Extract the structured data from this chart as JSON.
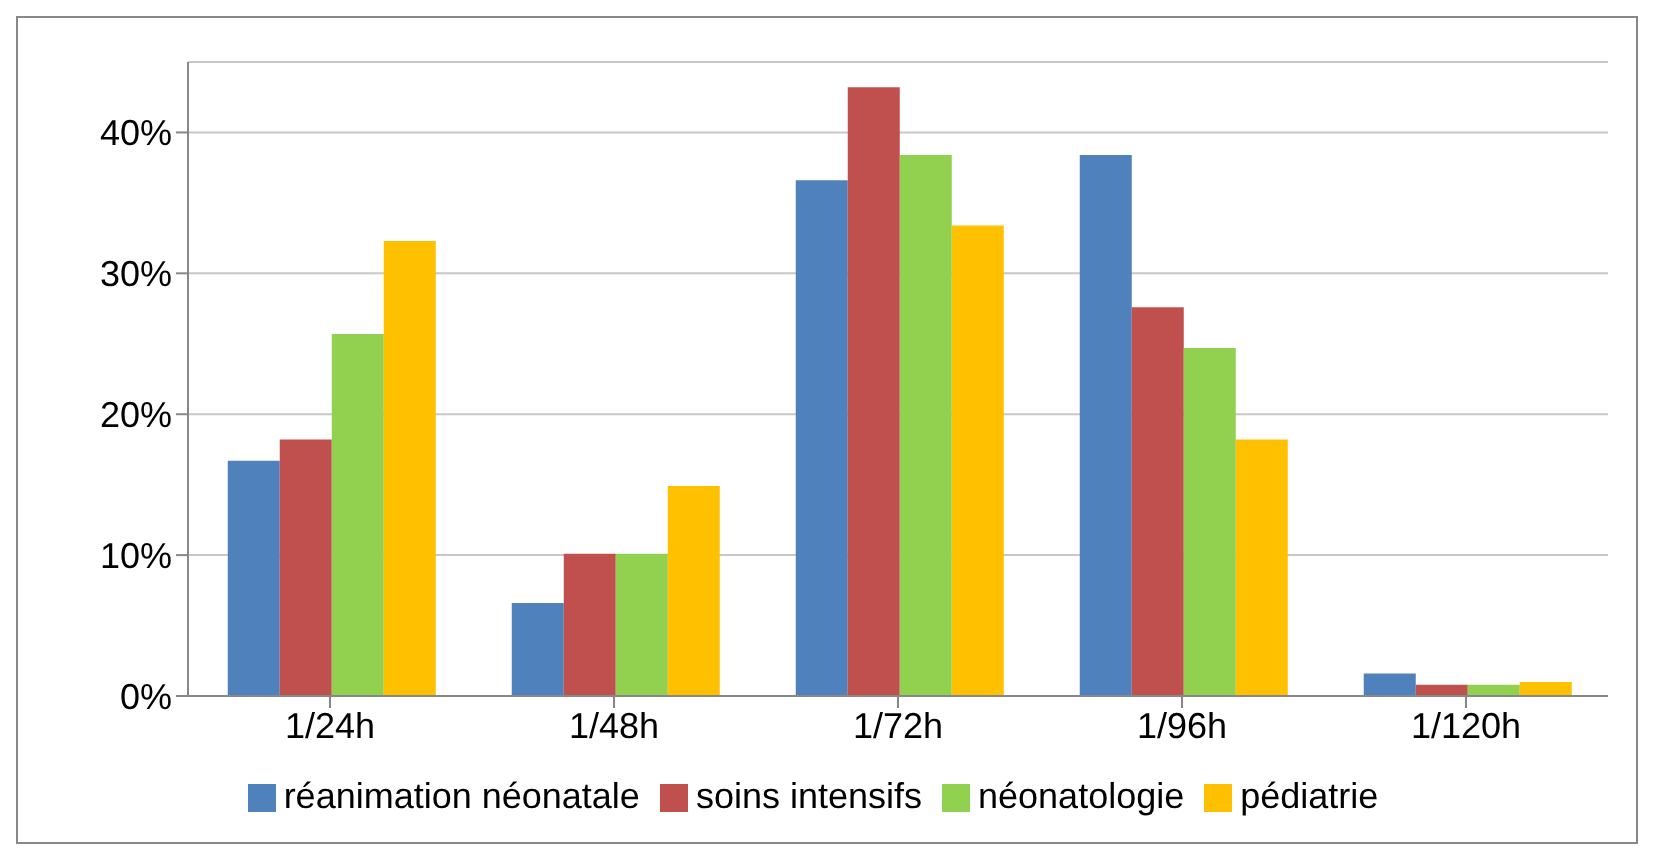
{
  "chart_data": {
    "type": "bar",
    "categories": [
      "1/24h",
      "1/48h",
      "1/72h",
      "1/96h",
      "1/120h"
    ],
    "series": [
      {
        "name": "réanimation néonatale",
        "color": "#4f81bd",
        "values": [
          16.7,
          6.6,
          36.6,
          38.4,
          1.6
        ]
      },
      {
        "name": "soins intensifs",
        "color": "#c0504d",
        "values": [
          18.2,
          10.1,
          43.2,
          27.6,
          0.8
        ]
      },
      {
        "name": "néonatologie",
        "color": "#92d050",
        "values": [
          25.7,
          10.1,
          38.4,
          24.7,
          0.8
        ]
      },
      {
        "name": "pédiatrie",
        "color": "#ffc000",
        "values": [
          32.3,
          14.9,
          33.4,
          18.2,
          1.0
        ]
      }
    ],
    "ylim": [
      0,
      45
    ],
    "yticks": [
      {
        "value": 0,
        "label": "0%"
      },
      {
        "value": 10,
        "label": "10%"
      },
      {
        "value": 20,
        "label": "20%"
      },
      {
        "value": 30,
        "label": "30%"
      },
      {
        "value": 40,
        "label": "40%"
      }
    ],
    "grid": "y",
    "legend": "bottom"
  }
}
